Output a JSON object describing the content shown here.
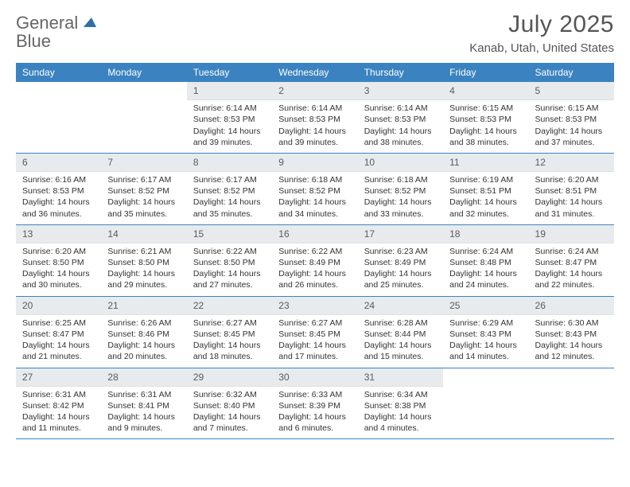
{
  "brand": {
    "name_part1": "General",
    "name_part2": "Blue"
  },
  "header": {
    "month_year": "July 2025",
    "location": "Kanab, Utah, United States"
  },
  "colors": {
    "header_bar": "#3b83c0",
    "day_num_bg": "#e8ebed",
    "text": "#333333",
    "title": "#555555",
    "logo_gray": "#666666",
    "logo_blue": "#3a7bbf"
  },
  "day_names": [
    "Sunday",
    "Monday",
    "Tuesday",
    "Wednesday",
    "Thursday",
    "Friday",
    "Saturday"
  ],
  "weeks": [
    [
      {
        "empty": true
      },
      {
        "empty": true
      },
      {
        "n": "1",
        "sr": "6:14 AM",
        "ss": "8:53 PM",
        "dl": "14 hours and 39 minutes."
      },
      {
        "n": "2",
        "sr": "6:14 AM",
        "ss": "8:53 PM",
        "dl": "14 hours and 39 minutes."
      },
      {
        "n": "3",
        "sr": "6:14 AM",
        "ss": "8:53 PM",
        "dl": "14 hours and 38 minutes."
      },
      {
        "n": "4",
        "sr": "6:15 AM",
        "ss": "8:53 PM",
        "dl": "14 hours and 38 minutes."
      },
      {
        "n": "5",
        "sr": "6:15 AM",
        "ss": "8:53 PM",
        "dl": "14 hours and 37 minutes."
      }
    ],
    [
      {
        "n": "6",
        "sr": "6:16 AM",
        "ss": "8:53 PM",
        "dl": "14 hours and 36 minutes."
      },
      {
        "n": "7",
        "sr": "6:17 AM",
        "ss": "8:52 PM",
        "dl": "14 hours and 35 minutes."
      },
      {
        "n": "8",
        "sr": "6:17 AM",
        "ss": "8:52 PM",
        "dl": "14 hours and 35 minutes."
      },
      {
        "n": "9",
        "sr": "6:18 AM",
        "ss": "8:52 PM",
        "dl": "14 hours and 34 minutes."
      },
      {
        "n": "10",
        "sr": "6:18 AM",
        "ss": "8:52 PM",
        "dl": "14 hours and 33 minutes."
      },
      {
        "n": "11",
        "sr": "6:19 AM",
        "ss": "8:51 PM",
        "dl": "14 hours and 32 minutes."
      },
      {
        "n": "12",
        "sr": "6:20 AM",
        "ss": "8:51 PM",
        "dl": "14 hours and 31 minutes."
      }
    ],
    [
      {
        "n": "13",
        "sr": "6:20 AM",
        "ss": "8:50 PM",
        "dl": "14 hours and 30 minutes."
      },
      {
        "n": "14",
        "sr": "6:21 AM",
        "ss": "8:50 PM",
        "dl": "14 hours and 29 minutes."
      },
      {
        "n": "15",
        "sr": "6:22 AM",
        "ss": "8:50 PM",
        "dl": "14 hours and 27 minutes."
      },
      {
        "n": "16",
        "sr": "6:22 AM",
        "ss": "8:49 PM",
        "dl": "14 hours and 26 minutes."
      },
      {
        "n": "17",
        "sr": "6:23 AM",
        "ss": "8:49 PM",
        "dl": "14 hours and 25 minutes."
      },
      {
        "n": "18",
        "sr": "6:24 AM",
        "ss": "8:48 PM",
        "dl": "14 hours and 24 minutes."
      },
      {
        "n": "19",
        "sr": "6:24 AM",
        "ss": "8:47 PM",
        "dl": "14 hours and 22 minutes."
      }
    ],
    [
      {
        "n": "20",
        "sr": "6:25 AM",
        "ss": "8:47 PM",
        "dl": "14 hours and 21 minutes."
      },
      {
        "n": "21",
        "sr": "6:26 AM",
        "ss": "8:46 PM",
        "dl": "14 hours and 20 minutes."
      },
      {
        "n": "22",
        "sr": "6:27 AM",
        "ss": "8:45 PM",
        "dl": "14 hours and 18 minutes."
      },
      {
        "n": "23",
        "sr": "6:27 AM",
        "ss": "8:45 PM",
        "dl": "14 hours and 17 minutes."
      },
      {
        "n": "24",
        "sr": "6:28 AM",
        "ss": "8:44 PM",
        "dl": "14 hours and 15 minutes."
      },
      {
        "n": "25",
        "sr": "6:29 AM",
        "ss": "8:43 PM",
        "dl": "14 hours and 14 minutes."
      },
      {
        "n": "26",
        "sr": "6:30 AM",
        "ss": "8:43 PM",
        "dl": "14 hours and 12 minutes."
      }
    ],
    [
      {
        "n": "27",
        "sr": "6:31 AM",
        "ss": "8:42 PM",
        "dl": "14 hours and 11 minutes."
      },
      {
        "n": "28",
        "sr": "6:31 AM",
        "ss": "8:41 PM",
        "dl": "14 hours and 9 minutes."
      },
      {
        "n": "29",
        "sr": "6:32 AM",
        "ss": "8:40 PM",
        "dl": "14 hours and 7 minutes."
      },
      {
        "n": "30",
        "sr": "6:33 AM",
        "ss": "8:39 PM",
        "dl": "14 hours and 6 minutes."
      },
      {
        "n": "31",
        "sr": "6:34 AM",
        "ss": "8:38 PM",
        "dl": "14 hours and 4 minutes."
      },
      {
        "empty": true
      },
      {
        "empty": true
      }
    ]
  ],
  "labels": {
    "sunrise": "Sunrise:",
    "sunset": "Sunset:",
    "daylight": "Daylight:"
  }
}
